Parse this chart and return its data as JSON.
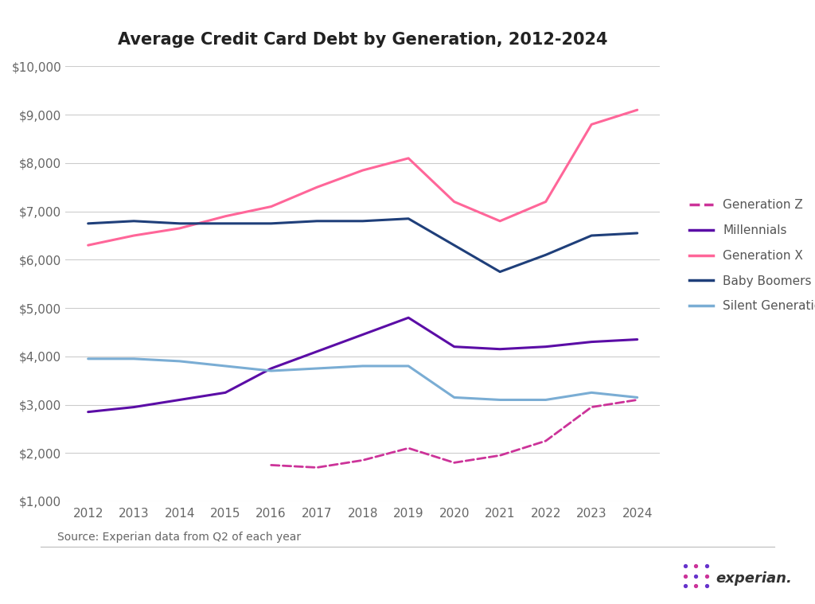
{
  "title": "Average Credit Card Debt by Generation, 2012-2024",
  "years": [
    2012,
    2013,
    2014,
    2015,
    2016,
    2017,
    2018,
    2019,
    2020,
    2021,
    2022,
    2023,
    2024
  ],
  "series": {
    "Generation Z": {
      "values": [
        null,
        null,
        null,
        null,
        1750,
        1700,
        1850,
        2100,
        1800,
        1950,
        2250,
        2950,
        3100
      ],
      "color": "#cc3399",
      "linestyle": "dashed",
      "linewidth": 2.0
    },
    "Millennials": {
      "values": [
        2850,
        2950,
        3100,
        3250,
        3750,
        4100,
        4450,
        4800,
        4200,
        4150,
        4200,
        4300,
        4350
      ],
      "color": "#5b0da6",
      "linestyle": "solid",
      "linewidth": 2.2
    },
    "Generation X": {
      "values": [
        6300,
        6500,
        6650,
        6900,
        7100,
        7500,
        7850,
        8100,
        7200,
        6800,
        7200,
        8800,
        9100
      ],
      "color": "#ff6699",
      "linestyle": "solid",
      "linewidth": 2.2
    },
    "Baby Boomers": {
      "values": [
        6750,
        6800,
        6750,
        6750,
        6750,
        6800,
        6800,
        6850,
        6300,
        5750,
        6100,
        6500,
        6550
      ],
      "color": "#1f3f7a",
      "linestyle": "solid",
      "linewidth": 2.2
    },
    "Silent Generation": {
      "values": [
        3950,
        3950,
        3900,
        3800,
        3700,
        3750,
        3800,
        3800,
        3150,
        3100,
        3100,
        3250,
        3150
      ],
      "color": "#7aadd4",
      "linestyle": "solid",
      "linewidth": 2.2
    }
  },
  "ylim": [
    1000,
    10000
  ],
  "yticks": [
    1000,
    2000,
    3000,
    4000,
    5000,
    6000,
    7000,
    8000,
    9000,
    10000
  ],
  "source_text": "Source: Experian data from Q2 of each year",
  "background_color": "#ffffff",
  "grid_color": "#cccccc",
  "legend_order": [
    "Generation Z",
    "Millennials",
    "Generation X",
    "Baby Boomers",
    "Silent Generation"
  ]
}
